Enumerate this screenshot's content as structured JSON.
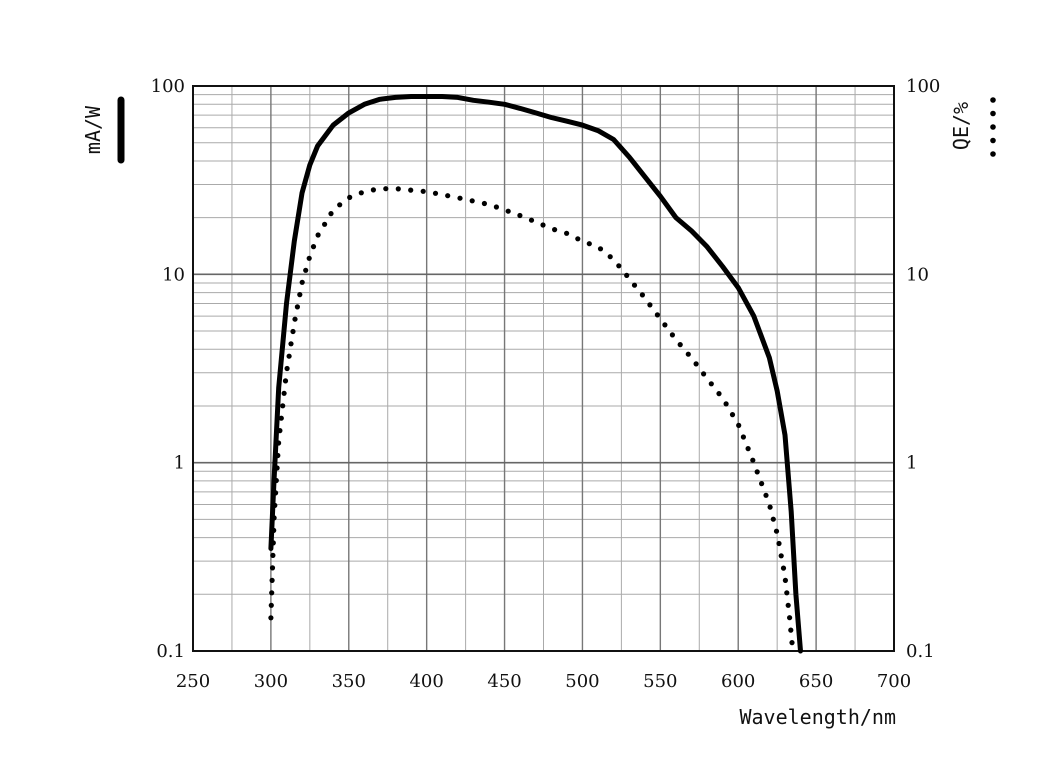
{
  "chart_data": {
    "type": "line",
    "xlabel": "Wavelength/nm",
    "ylabel_left": "mA/W",
    "ylabel_right": "QE/%",
    "x_ticks": [
      250,
      300,
      350,
      400,
      450,
      500,
      550,
      600,
      650,
      700
    ],
    "x_tick_labels": [
      "250",
      "300",
      "350",
      "400",
      "450",
      "500",
      "550",
      "600",
      "650",
      "700"
    ],
    "y_ticks": [
      0.1,
      1,
      10,
      100
    ],
    "y_tick_labels": [
      "0.1",
      "1",
      "10",
      "100"
    ],
    "xlim": [
      250,
      700
    ],
    "ylim": [
      0.1,
      100
    ],
    "yscale": "log",
    "grid": true,
    "series": [
      {
        "name": "mA/W",
        "style": "solid",
        "color": "#000000",
        "points": [
          [
            300,
            0.35
          ],
          [
            302,
            0.8
          ],
          [
            305,
            2.5
          ],
          [
            310,
            7
          ],
          [
            315,
            15
          ],
          [
            320,
            27
          ],
          [
            325,
            38
          ],
          [
            330,
            48
          ],
          [
            340,
            62
          ],
          [
            350,
            72
          ],
          [
            360,
            80
          ],
          [
            370,
            85
          ],
          [
            380,
            87
          ],
          [
            390,
            88
          ],
          [
            400,
            88
          ],
          [
            410,
            88
          ],
          [
            420,
            87
          ],
          [
            430,
            84
          ],
          [
            440,
            82
          ],
          [
            450,
            80
          ],
          [
            460,
            76
          ],
          [
            470,
            72
          ],
          [
            480,
            68
          ],
          [
            490,
            65
          ],
          [
            500,
            62
          ],
          [
            510,
            58
          ],
          [
            520,
            52
          ],
          [
            530,
            42
          ],
          [
            540,
            33
          ],
          [
            550,
            26
          ],
          [
            560,
            20
          ],
          [
            570,
            17
          ],
          [
            580,
            14
          ],
          [
            590,
            11
          ],
          [
            600,
            8.5
          ],
          [
            610,
            6
          ],
          [
            620,
            3.6
          ],
          [
            625,
            2.4
          ],
          [
            630,
            1.4
          ],
          [
            634,
            0.55
          ],
          [
            637,
            0.2
          ],
          [
            640,
            0.1
          ]
        ]
      },
      {
        "name": "QE/%",
        "style": "dotted",
        "color": "#000000",
        "points": [
          [
            300,
            0.15
          ],
          [
            302,
            0.5
          ],
          [
            305,
            1.3
          ],
          [
            310,
            3
          ],
          [
            315,
            5.5
          ],
          [
            320,
            9
          ],
          [
            325,
            12.5
          ],
          [
            330,
            16
          ],
          [
            340,
            22
          ],
          [
            350,
            25.5
          ],
          [
            360,
            27.5
          ],
          [
            370,
            28.5
          ],
          [
            380,
            28.5
          ],
          [
            390,
            28
          ],
          [
            400,
            27.5
          ],
          [
            410,
            26.5
          ],
          [
            420,
            25.5
          ],
          [
            430,
            24.5
          ],
          [
            440,
            23.5
          ],
          [
            450,
            22
          ],
          [
            460,
            20.5
          ],
          [
            470,
            19
          ],
          [
            480,
            17.5
          ],
          [
            490,
            16.5
          ],
          [
            500,
            15
          ],
          [
            510,
            14
          ],
          [
            520,
            12
          ],
          [
            530,
            9.5
          ],
          [
            540,
            7.5
          ],
          [
            550,
            5.8
          ],
          [
            560,
            4.5
          ],
          [
            570,
            3.6
          ],
          [
            580,
            2.8
          ],
          [
            590,
            2.2
          ],
          [
            600,
            1.6
          ],
          [
            610,
            1.0
          ],
          [
            620,
            0.6
          ],
          [
            625,
            0.42
          ],
          [
            630,
            0.25
          ],
          [
            633,
            0.15
          ],
          [
            635,
            0.1
          ]
        ]
      }
    ]
  }
}
